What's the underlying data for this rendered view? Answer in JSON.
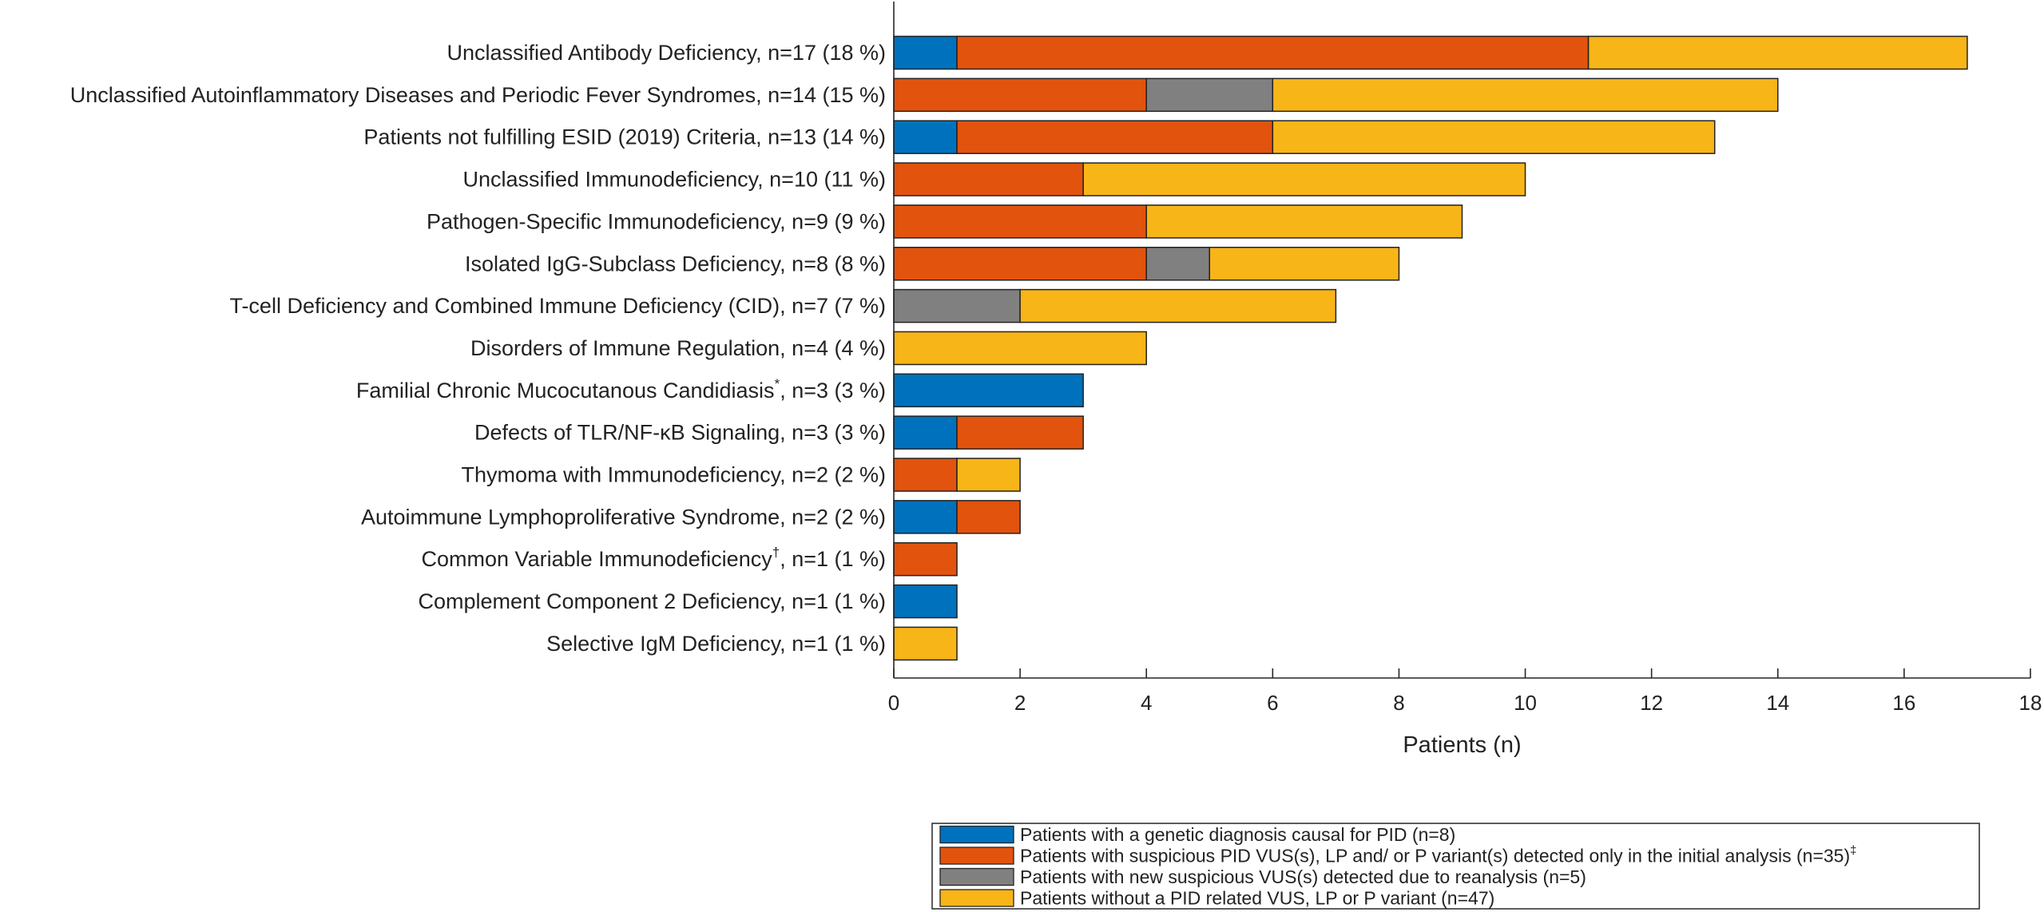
{
  "chart_data": {
    "type": "bar",
    "orientation": "horizontal",
    "stacked": true,
    "xlabel": "Patients (n)",
    "xlim": [
      0,
      18
    ],
    "xticks": [
      0,
      2,
      4,
      6,
      8,
      10,
      12,
      14,
      16,
      18
    ],
    "categories": [
      {
        "label": "Unclassified Antibody Deficiency, n=17 (18 %)",
        "sup": "",
        "suffix": ""
      },
      {
        "label": "Unclassified Autoinflammatory Diseases and Periodic Fever Syndromes, n=14 (15 %)",
        "sup": "",
        "suffix": ""
      },
      {
        "label": "Patients not fulfilling ESID (2019) Criteria, n=13 (14 %)",
        "sup": "",
        "suffix": ""
      },
      {
        "label": "Unclassified Immunodeficiency, n=10 (11 %)",
        "sup": "",
        "suffix": ""
      },
      {
        "label": "Pathogen-Specific Immunodeficiency, n=9 (9 %)",
        "sup": "",
        "suffix": ""
      },
      {
        "label": "Isolated IgG-Subclass Deficiency, n=8 (8 %)",
        "sup": "",
        "suffix": ""
      },
      {
        "label": "T-cell Deficiency and Combined Immune Deficiency (CID), n=7 (7 %)",
        "sup": "",
        "suffix": ""
      },
      {
        "label": "Disorders of Immune Regulation, n=4 (4 %)",
        "sup": "",
        "suffix": ""
      },
      {
        "label": "Familial Chronic Mucocutanous Candidiasis",
        "sup": "*",
        "suffix": ", n=3 (3 %)"
      },
      {
        "label": "Defects of TLR/NF-κB Signaling, n=3 (3 %)",
        "sup": "",
        "suffix": ""
      },
      {
        "label": "Thymoma with Immunodeficiency, n=2 (2 %)",
        "sup": "",
        "suffix": ""
      },
      {
        "label": "Autoimmune Lymphoproliferative Syndrome, n=2 (2 %)",
        "sup": "",
        "suffix": ""
      },
      {
        "label": "Common Variable Immunodeficiency",
        "sup": "†",
        "suffix": ", n=1 (1 %)"
      },
      {
        "label": "Complement Component 2 Deficiency, n=1 (1 %)",
        "sup": "",
        "suffix": ""
      },
      {
        "label": "Selective IgM Deficiency, n=1 (1 %)",
        "sup": "",
        "suffix": ""
      }
    ],
    "series": [
      {
        "name": "Patients with a genetic diagnosis causal for PID (n=8)",
        "sup": "",
        "color": "#0072BD",
        "values": [
          1,
          0,
          1,
          0,
          0,
          0,
          0,
          0,
          3,
          1,
          0,
          1,
          0,
          1,
          0
        ]
      },
      {
        "name": "Patients with suspicious PID VUS(s), LP and/ or P variant(s) detected only in the initial analysis (n=35)",
        "sup": "‡",
        "color": "#E2530E",
        "values": [
          10,
          4,
          5,
          3,
          4,
          4,
          0,
          0,
          0,
          2,
          1,
          1,
          1,
          0,
          0
        ]
      },
      {
        "name": "Patients with new suspicious VUS(s) detected due to reanalysis (n=5)",
        "sup": "",
        "color": "#808080",
        "values": [
          0,
          2,
          0,
          0,
          0,
          1,
          2,
          0,
          0,
          0,
          0,
          0,
          0,
          0,
          0
        ]
      },
      {
        "name": "Patients without a PID related VUS, LP or P variant (n=47)",
        "sup": "",
        "color": "#F8B518",
        "values": [
          6,
          8,
          7,
          7,
          5,
          3,
          5,
          4,
          0,
          0,
          1,
          0,
          0,
          0,
          1
        ]
      }
    ],
    "legend_position": "bottom-right"
  }
}
